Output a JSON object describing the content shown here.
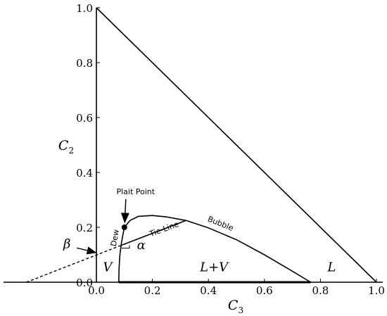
{
  "chart_data": {
    "type": "line",
    "title": "",
    "xlabel": {
      "main": "C",
      "sub": "3"
    },
    "ylabel": {
      "main": "C",
      "sub": "2"
    },
    "xlim": [
      0.0,
      1.0
    ],
    "ylim": [
      0.0,
      1.0
    ],
    "grid": false,
    "x_ticks": [
      {
        "value": 0.0,
        "label": "0.0"
      },
      {
        "value": 0.2,
        "label": "0.2"
      },
      {
        "value": 0.4,
        "label": "0.4"
      },
      {
        "value": 0.6,
        "label": "0.6"
      },
      {
        "value": 0.8,
        "label": "0.8"
      },
      {
        "value": 1.0,
        "label": "1.0"
      }
    ],
    "y_ticks": [
      {
        "value": 0.0,
        "label": "0.0"
      },
      {
        "value": 0.2,
        "label": "0.2"
      },
      {
        "value": 0.4,
        "label": "0.4"
      },
      {
        "value": 0.6,
        "label": "0.6"
      },
      {
        "value": 0.8,
        "label": "0.8"
      },
      {
        "value": 1.0,
        "label": "1.0"
      }
    ],
    "series": [
      {
        "name": "Dew",
        "x": [
          0.08,
          0.081,
          0.084,
          0.089,
          0.095,
          0.1
        ],
        "y": [
          0.0,
          0.05,
          0.1,
          0.14,
          0.175,
          0.2
        ]
      },
      {
        "name": "Bubble",
        "x": [
          0.1,
          0.12,
          0.15,
          0.2,
          0.25,
          0.32,
          0.4,
          0.5,
          0.6,
          0.7,
          0.765
        ],
        "y": [
          0.2,
          0.225,
          0.24,
          0.243,
          0.238,
          0.225,
          0.198,
          0.155,
          0.1,
          0.04,
          0.0
        ]
      },
      {
        "name": "Tie-Line",
        "x": [
          0.09,
          0.32
        ],
        "y": [
          0.135,
          0.225
        ]
      },
      {
        "name": "tie-line-extension",
        "x": [
          -0.25,
          0.09
        ],
        "y": [
          0.0,
          0.135
        ]
      },
      {
        "name": "L+V base",
        "x": [
          0.08,
          0.765
        ],
        "y": [
          0.0,
          0.0
        ]
      }
    ],
    "plait_point": {
      "x": 0.1,
      "y": 0.2,
      "label": "Plait Point"
    },
    "annotations": {
      "dew": "Dew",
      "bubble": "Bubble",
      "tie_line": "Tie-Line",
      "alpha": "α",
      "beta": "β",
      "region_V": "V",
      "region_LV": "L+V",
      "region_L": "L"
    }
  }
}
